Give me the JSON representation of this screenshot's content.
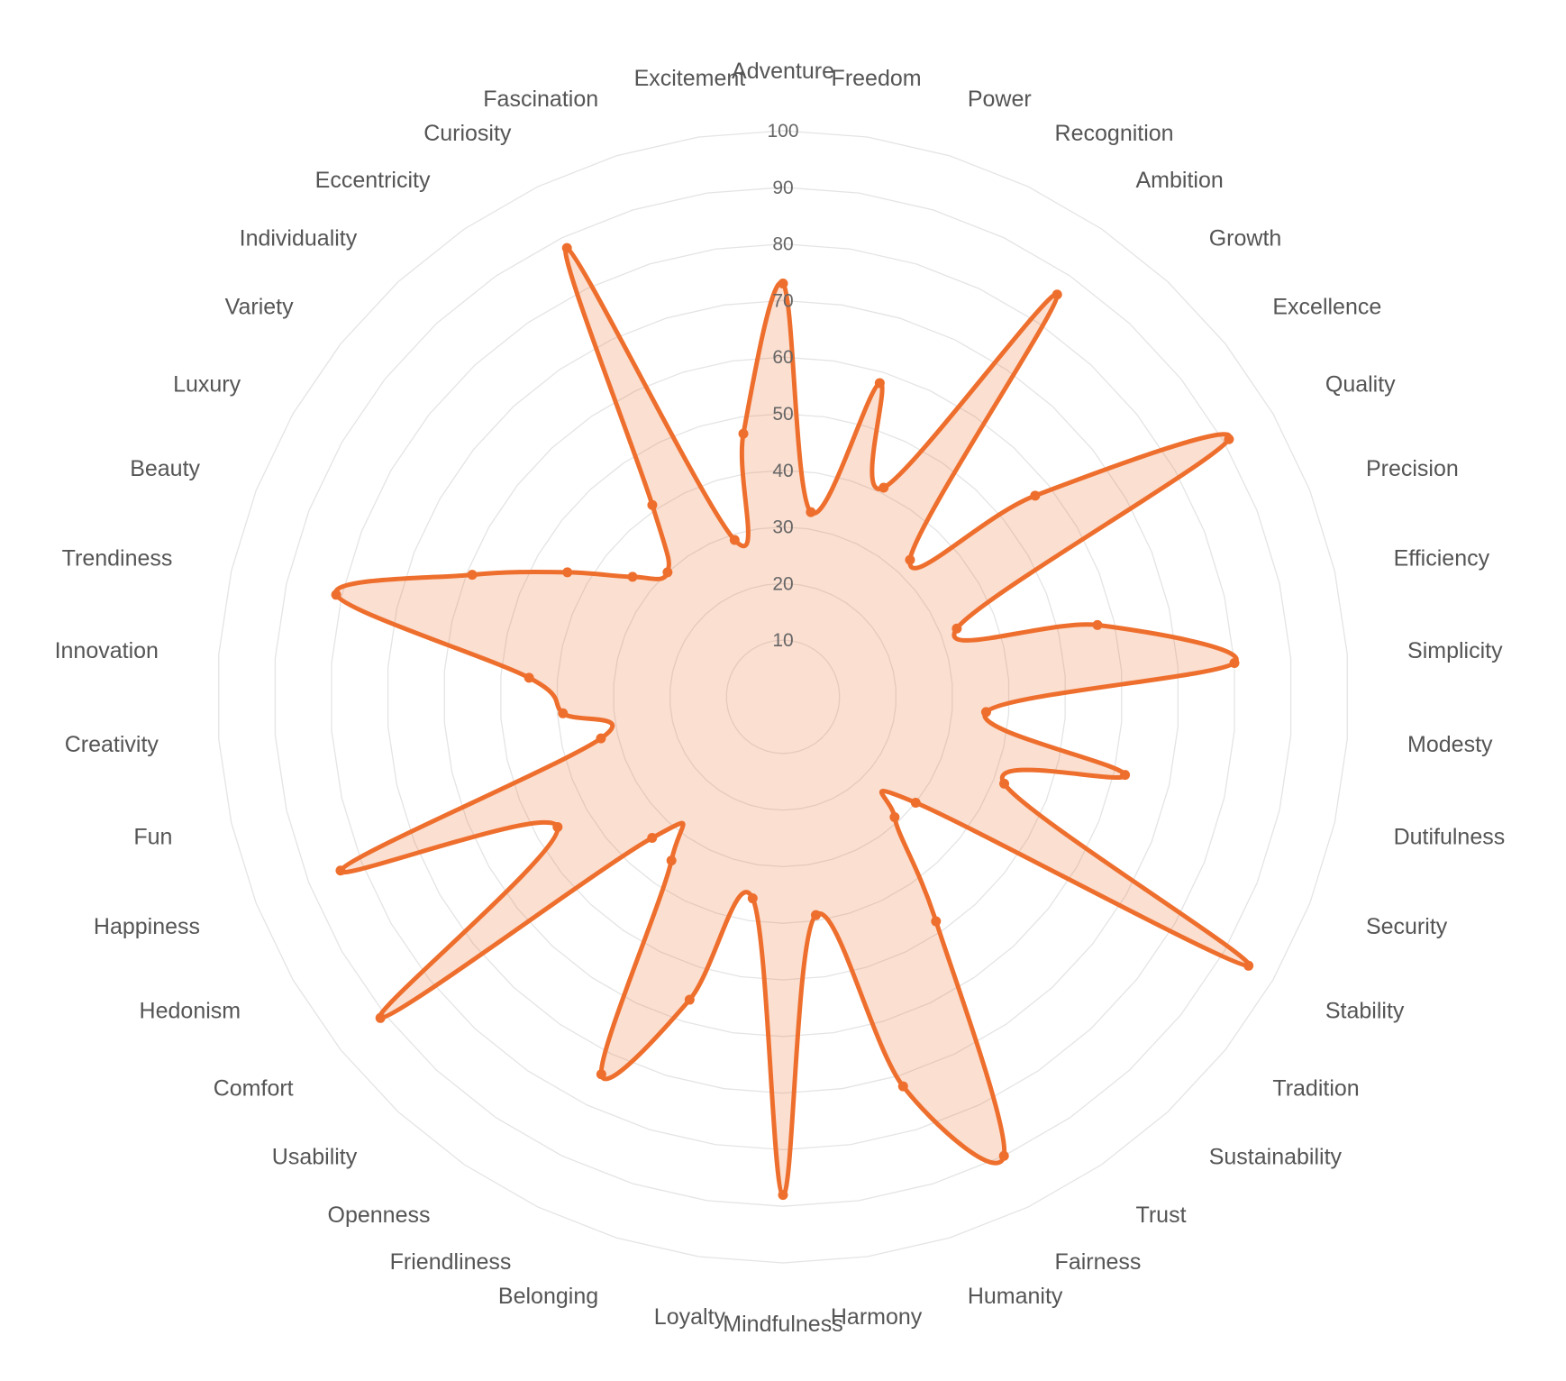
{
  "chart_data": {
    "type": "radar",
    "categories": [
      "Adventure",
      "Freedom",
      "Power",
      "Recognition",
      "Ambition",
      "Growth",
      "Excellence",
      "Quality",
      "Precision",
      "Efficiency",
      "Simplicity",
      "Modesty",
      "Dutifulness",
      "Security",
      "Stability",
      "Tradition",
      "Sustainability",
      "Trust",
      "Fairness",
      "Humanity",
      "Harmony",
      "Mindfulness",
      "Loyalty",
      "Belonging",
      "Friendliness",
      "Openness",
      "Usability",
      "Comfort",
      "Hedonism",
      "Happiness",
      "Fun",
      "Creativity",
      "Innovation",
      "Trendiness",
      "Beauty",
      "Luxury",
      "Variety",
      "Individuality",
      "Eccentricity",
      "Curiosity",
      "Fascination",
      "Excitement"
    ],
    "series": [
      {
        "values": [
          73,
          33,
          58,
          41,
          86,
          33,
          57,
          91,
          33,
          57,
          80,
          36,
          62,
          42,
          95,
          30,
          29,
          48,
          90,
          72,
          39,
          88,
          36,
          56,
          74,
          35,
          34,
          91,
          46,
          84,
          33,
          39,
          45,
          81,
          59,
          44,
          34,
          30,
          41,
          88,
          29,
          47
        ],
        "color": "#ee6f2d",
        "fill": "rgba(238,111,45,0.22)"
      }
    ],
    "rlim": [
      0,
      100
    ],
    "rticks": [
      "10",
      "20",
      "30",
      "40",
      "50",
      "60",
      "70",
      "80",
      "90",
      "100"
    ],
    "grid": true,
    "curve": "smooth"
  }
}
